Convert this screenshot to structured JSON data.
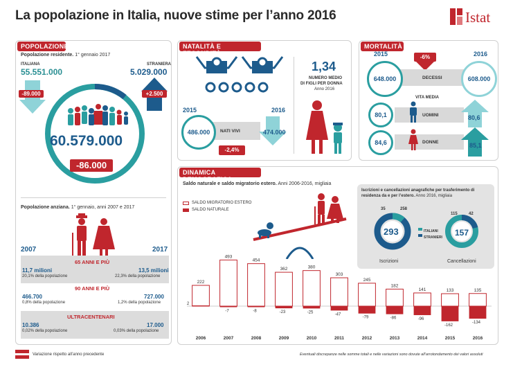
{
  "header": {
    "title": "La popolazione in Italia, nuove stime per l’anno 2016",
    "logo": "Istat"
  },
  "popolazione": {
    "title": "POPOLAZIONE",
    "resident_label": "Popolazione residente.",
    "resident_date": " 1° gennaio 2017",
    "italiana_label": "ITALIANA",
    "italiana_value": "55.551.000",
    "straniera_label": "STRANIERA",
    "straniera_value": "5.029.000",
    "italiana_change": "-89.000",
    "straniera_change": "+2.500",
    "total": "60.579.000",
    "total_change": "-86.000"
  },
  "anziana": {
    "title": "Popolazione anziana.",
    "date": " 1° gennaio, anni 2007 e 2017",
    "year_a": "2007",
    "year_b": "2017",
    "g65_label": "65 ANNI E PIÙ",
    "g65_a_value": "11,7 milioni",
    "g65_a_pct": "20,1% della popolazione",
    "g65_b_value": "13,5 milioni",
    "g65_b_pct": "22,3% della popolazione",
    "g90_label": "90 ANNI E PIÙ",
    "g90_a_value": "466.700",
    "g90_a_pct": "0,8% della popolazione",
    "g90_b_value": "727.000",
    "g90_b_pct": "1,2% della popolazione",
    "g100_label": "ULTRACENTENARI",
    "g100_a_value": "10.386",
    "g100_a_pct": "0,02% della popolazione",
    "g100_b_value": "17.000",
    "g100_b_pct": "0,03% della popolazione"
  },
  "natalita": {
    "title": "NATALITÀ E FECONDITÀ",
    "year_a": "2015",
    "year_b": "2016",
    "value_a": "486.000",
    "value_b": "474.000",
    "label": "NATI VIVI",
    "change": "-2,4%",
    "fert_value": "1,34",
    "fert_label1": "NUMERO MEDIO",
    "fert_label2": "DI FIGLI PER DONNA",
    "fert_year": "Anno 2016"
  },
  "mortalita": {
    "title": "MORTALITÀ",
    "year_a": "2015",
    "year_b": "2016",
    "change": "-6%",
    "decessi_label": "DECESSI",
    "decessi_a": "648.000",
    "decessi_b": "608.000",
    "vita_label": "VITA MEDIA",
    "uomini_label": "UOMINI",
    "uomini_a": "80,1",
    "uomini_b": "80,6",
    "donne_label": "DONNE",
    "donne_a": "84,6",
    "donne_b": "85,1"
  },
  "dinamica": {
    "title": "DINAMICA DEMOGRAFICA",
    "subtitle_bold": "Saldo naturale e saldo migratorio estero.",
    "subtitle": " Anni 2006-2016, migliaia",
    "legend_migr": "SALDO MIGRATORIO ESTERO",
    "legend_nat": "SALDO NATURALE",
    "iscr_title_bold": "Iscrizioni e cancellazioni anagrafiche per trasferimento di residenza da e per l’estero.",
    "iscr_title": " Anno 2016, migliaia",
    "iscr_total": "293",
    "iscr_it": "35",
    "iscr_st": "258",
    "iscr_label": "Iscrizioni",
    "canc_total": "157",
    "canc_it": "115",
    "canc_st": "42",
    "canc_label": "Cancellazioni",
    "leg_it": "ITALIANI",
    "leg_st": "STRANIERI"
  },
  "chart_data": {
    "type": "bar",
    "categories": [
      "2006",
      "2007",
      "2008",
      "2009",
      "2010",
      "2011",
      "2012",
      "2013",
      "2014",
      "2015",
      "2016"
    ],
    "series": [
      {
        "name": "SALDO MIGRATORIO ESTERO",
        "values": [
          222,
          493,
          454,
          362,
          380,
          303,
          245,
          182,
          141,
          133,
          135
        ]
      },
      {
        "name": "SALDO NATURALE",
        "values": [
          2,
          -7,
          -8,
          -23,
          -25,
          -47,
          -79,
          -86,
          -96,
          -162,
          -134
        ]
      }
    ],
    "colors": {
      "migratorio": "#c0262d",
      "naturale": "#c0262d"
    }
  },
  "footer": {
    "legend": "Variazione rispetto all’anno precedente",
    "note": "Eventuali discrepanze nelle somme totali e nelle variazioni sono dovute all’arrotondamento dei valori assoluti"
  },
  "colors": {
    "red": "#c0262d",
    "blue": "#1d5b8c",
    "teal": "#2a9ea0",
    "lightblue": "#8fd3d8"
  }
}
